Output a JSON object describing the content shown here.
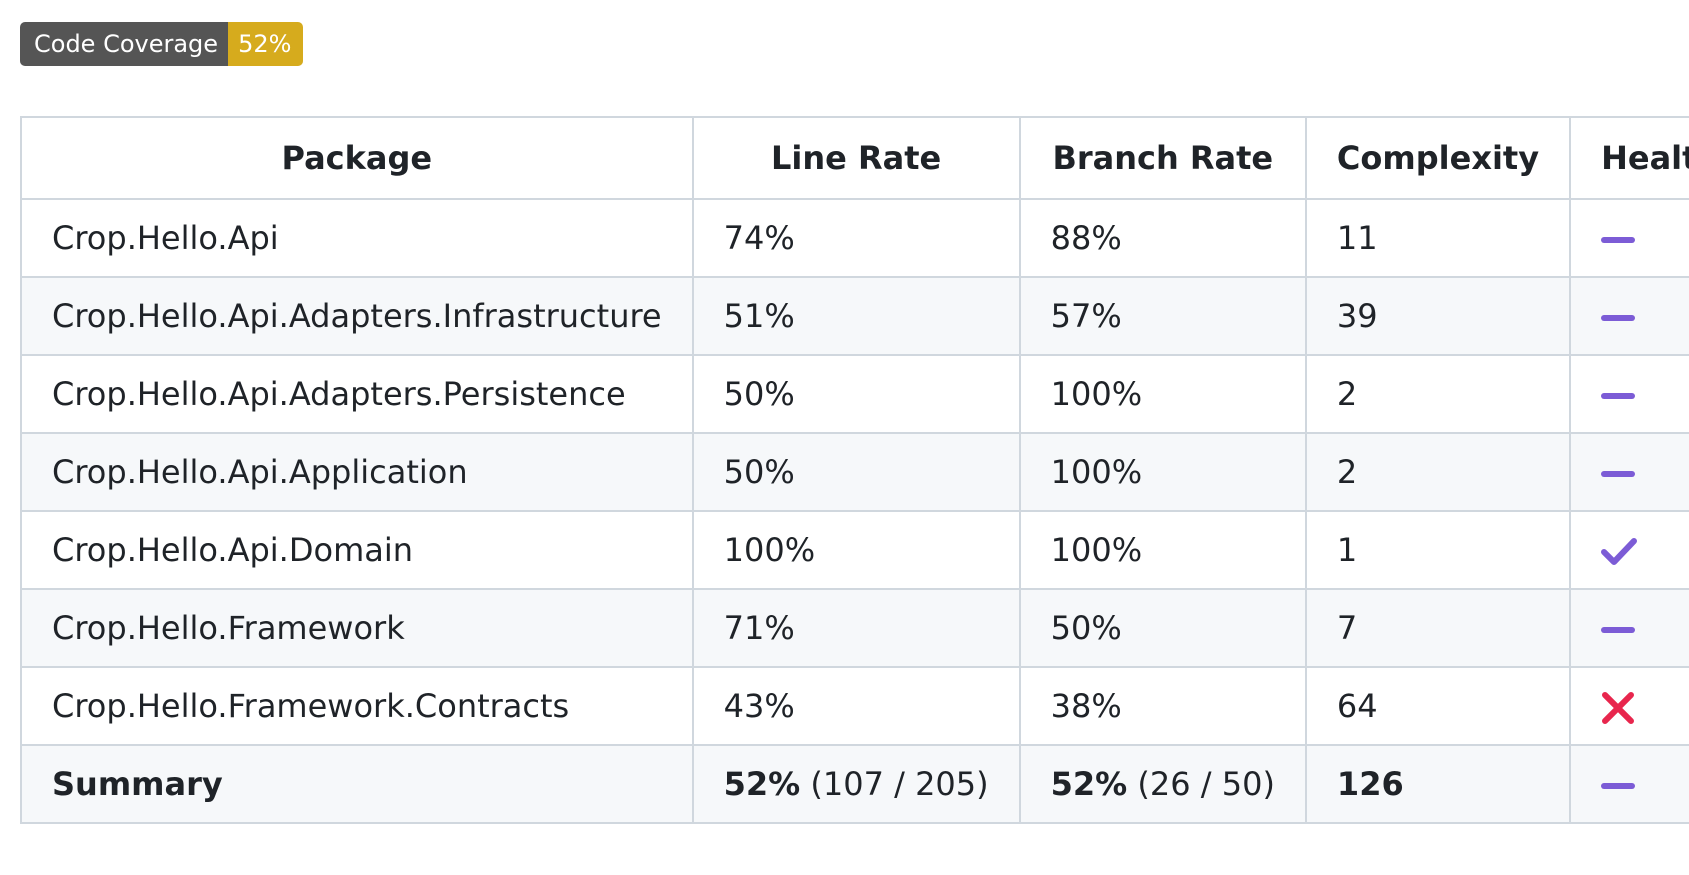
{
  "badge": {
    "label": "Code Coverage",
    "value": "52%",
    "label_color": "#555555",
    "value_color": "#d6ab1d"
  },
  "table": {
    "headers": {
      "package": "Package",
      "line_rate": "Line Rate",
      "branch_rate": "Branch Rate",
      "complexity": "Complexity",
      "health": "Health"
    },
    "rows": [
      {
        "package": "Crop.Hello.Api",
        "line_rate": "74%",
        "branch_rate": "88%",
        "complexity": "11",
        "health": "minus-icon"
      },
      {
        "package": "Crop.Hello.Api.Adapters.Infrastructure",
        "line_rate": "51%",
        "branch_rate": "57%",
        "complexity": "39",
        "health": "minus-icon"
      },
      {
        "package": "Crop.Hello.Api.Adapters.Persistence",
        "line_rate": "50%",
        "branch_rate": "100%",
        "complexity": "2",
        "health": "minus-icon"
      },
      {
        "package": "Crop.Hello.Api.Application",
        "line_rate": "50%",
        "branch_rate": "100%",
        "complexity": "2",
        "health": "minus-icon"
      },
      {
        "package": "Crop.Hello.Api.Domain",
        "line_rate": "100%",
        "branch_rate": "100%",
        "complexity": "1",
        "health": "check-icon"
      },
      {
        "package": "Crop.Hello.Framework",
        "line_rate": "71%",
        "branch_rate": "50%",
        "complexity": "7",
        "health": "minus-icon"
      },
      {
        "package": "Crop.Hello.Framework.Contracts",
        "line_rate": "43%",
        "branch_rate": "38%",
        "complexity": "64",
        "health": "x-icon"
      }
    ],
    "summary": {
      "label": "Summary",
      "line_rate": "52%",
      "line_detail": " (107 / 205)",
      "branch_rate": "52%",
      "branch_detail": " (26 / 50)",
      "complexity": "126",
      "health": "minus-icon"
    }
  },
  "colors": {
    "neutral_icon": "#7c5cd6",
    "fail_icon": "#e8264d",
    "border": "#d0d7de",
    "stripe": "#f6f8fa"
  }
}
